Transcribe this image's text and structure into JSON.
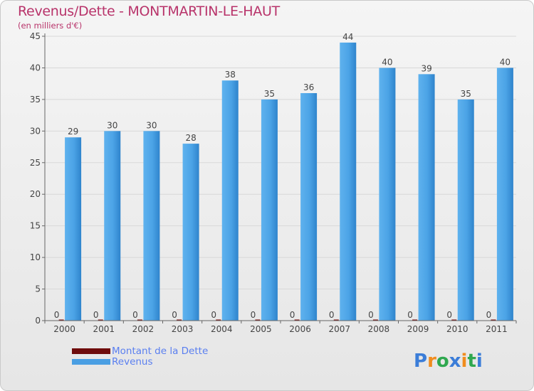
{
  "colors": {
    "title": "#b8336a",
    "revenus": "#4a9fe3",
    "dette": "#7a0a0a",
    "grid": "#d8d8d8",
    "legend_text": "#5a7ff0"
  },
  "logo": {
    "text": "Proxiti"
  },
  "chart_data": {
    "type": "bar",
    "title": "Revenus/Dette - MONTMARTIN-LE-HAUT",
    "subtitle": "(en milliers d'€)",
    "xlabel": "",
    "ylabel": "",
    "ylim": [
      0,
      45
    ],
    "yticks": [
      0,
      5,
      10,
      15,
      20,
      25,
      30,
      35,
      40,
      45
    ],
    "categories": [
      "2000",
      "2001",
      "2002",
      "2003",
      "2004",
      "2005",
      "2006",
      "2007",
      "2008",
      "2009",
      "2010",
      "2011"
    ],
    "series": [
      {
        "name": "Montant de la Dette",
        "values": [
          0,
          0,
          0,
          0,
          0,
          0,
          0,
          0,
          0,
          0,
          0,
          0
        ]
      },
      {
        "name": "Revenus",
        "values": [
          29,
          30,
          30,
          28,
          38,
          35,
          36,
          44,
          40,
          39,
          35,
          40
        ]
      }
    ],
    "grid": true,
    "legend_position": "bottom-left"
  }
}
